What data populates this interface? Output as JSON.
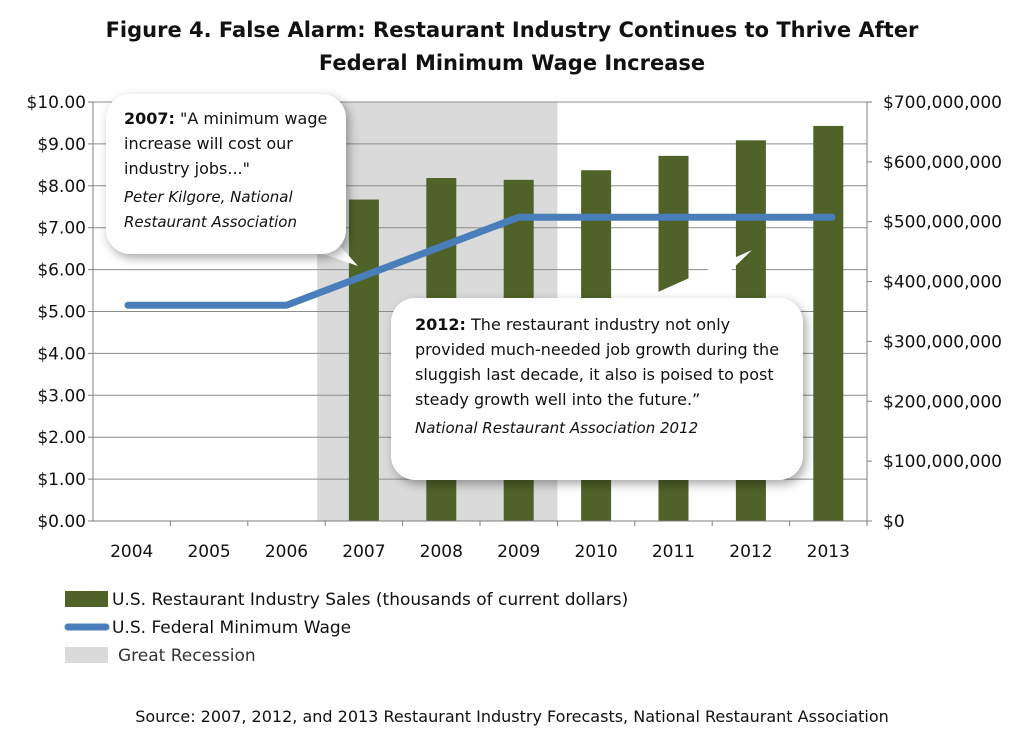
{
  "chart_data": {
    "type": "bar",
    "title": "Figure 4. False Alarm: Restaurant Industry Continues to Thrive After Federal Minimum Wage Increase",
    "categories": [
      "2004",
      "2005",
      "2006",
      "2007",
      "2008",
      "2009",
      "2010",
      "2011",
      "2012",
      "2013"
    ],
    "series": [
      {
        "name": "U.S. Restaurant Industry Sales (thousands of current dollars)",
        "type": "bar",
        "axis": "right",
        "color": "#4f6228",
        "values": [
          null,
          null,
          null,
          537000000,
          573000000,
          570000000,
          586000000,
          610000000,
          636000000,
          660000000
        ]
      },
      {
        "name": "U.S. Federal Minimum Wage",
        "type": "line",
        "axis": "left",
        "color": "#4a7ebb",
        "values": [
          5.15,
          5.15,
          5.15,
          5.85,
          6.55,
          7.25,
          7.25,
          7.25,
          7.25,
          7.25
        ]
      }
    ],
    "shaded_region": {
      "label": "Great Recession",
      "from": "2007",
      "to": "2009",
      "color": "#dadada"
    },
    "left_axis": {
      "ylim": [
        0,
        10
      ],
      "ticks": [
        "$0.00",
        "$1.00",
        "$2.00",
        "$3.00",
        "$4.00",
        "$5.00",
        "$6.00",
        "$7.00",
        "$8.00",
        "$9.00",
        "$10.00"
      ]
    },
    "right_axis": {
      "ylim": [
        0,
        700000000
      ],
      "ticks": [
        "$0",
        "$100,000,000",
        "$200,000,000",
        "$300,000,000",
        "$400,000,000",
        "$500,000,000",
        "$600,000,000",
        "$700,000,000"
      ]
    },
    "grid": true,
    "legend_placement": "bottom-left",
    "annotations": [
      {
        "year_label": "2007:",
        "quote": " \"A minimum wage increase will cost our industry jobs...\"",
        "attribution": "Peter Kilgore, National Restaurant Association"
      },
      {
        "year_label": "2012:",
        "quote": " The restaurant industry not only provided much-needed job growth during the sluggish last decade, it also is poised to post steady growth well into the future.”",
        "attribution": "National Restaurant Association 2012"
      }
    ],
    "source": "Source: 2007, 2012, and 2013 Restaurant Industry Forecasts, National Restaurant Association"
  }
}
